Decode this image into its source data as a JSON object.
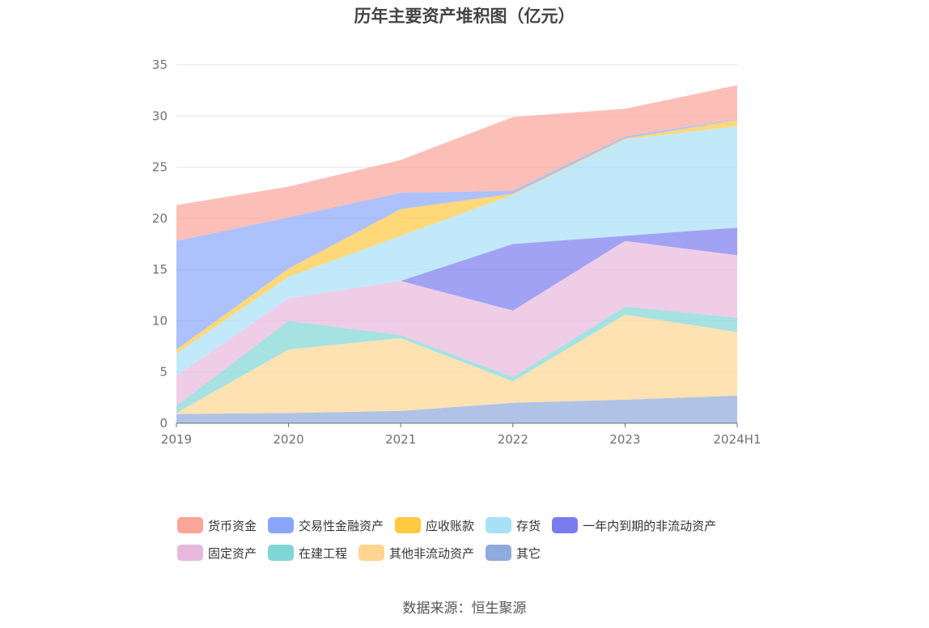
{
  "title": "历年主要资产堆积图（亿元）",
  "source": "数据来源：恒生聚源",
  "chart_data": {
    "type": "area",
    "stacked": true,
    "title": "历年主要资产堆积图（亿元）",
    "xlabel": "",
    "ylabel": "",
    "ylim": [
      0,
      35
    ],
    "yticks": [
      0,
      5,
      10,
      15,
      20,
      25,
      30,
      35
    ],
    "categories": [
      "2019",
      "2020",
      "2021",
      "2022",
      "2023",
      "2024H1"
    ],
    "grid": true,
    "legend_position": "bottom",
    "series": [
      {
        "name": "其它",
        "color": "#8faadc",
        "values": [
          0.9,
          1.0,
          1.2,
          2.0,
          2.3,
          2.7
        ]
      },
      {
        "name": "其他非流动资产",
        "color": "#ffd591",
        "values": [
          0.1,
          6.2,
          7.1,
          2.1,
          8.3,
          6.2
        ]
      },
      {
        "name": "在建工程",
        "color": "#80d6d6",
        "values": [
          0.7,
          2.8,
          0.3,
          0.4,
          0.8,
          1.4
        ]
      },
      {
        "name": "固定资产",
        "color": "#e8b8dc",
        "values": [
          2.9,
          2.2,
          5.3,
          6.5,
          6.4,
          6.1
        ]
      },
      {
        "name": "一年内到期的非流动资产",
        "color": "#7b7bf0",
        "values": [
          0.0,
          0.0,
          0.0,
          6.5,
          0.5,
          2.7
        ]
      },
      {
        "name": "存货",
        "color": "#a8e0f8",
        "values": [
          2.2,
          2.1,
          4.4,
          4.8,
          9.4,
          9.9
        ]
      },
      {
        "name": "应收账款",
        "color": "#ffc940",
        "values": [
          0.4,
          0.8,
          2.6,
          0.1,
          0.1,
          0.6
        ]
      },
      {
        "name": "交易性金融资产",
        "color": "#8aa6fb",
        "values": [
          10.6,
          5.0,
          1.6,
          0.3,
          0.2,
          0.1
        ]
      },
      {
        "name": "货币资金",
        "color": "#fba498",
        "values": [
          3.5,
          3.0,
          3.2,
          7.2,
          2.7,
          3.3
        ]
      }
    ]
  }
}
